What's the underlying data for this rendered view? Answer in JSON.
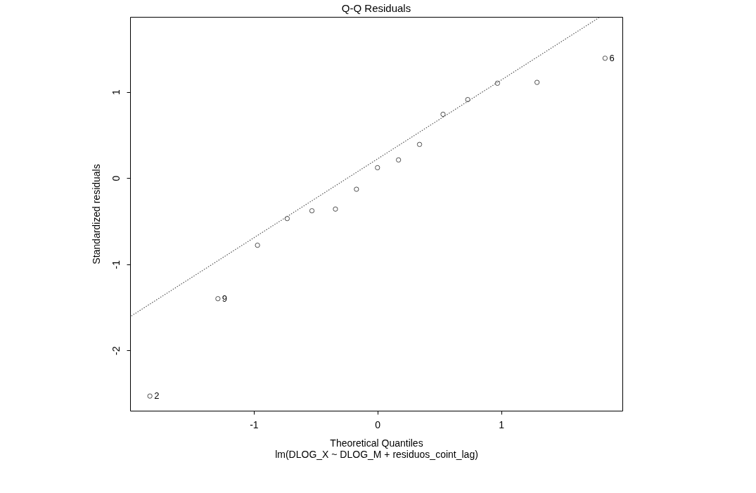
{
  "chart_data": {
    "type": "scatter",
    "title": "Q-Q Residuals",
    "subtitle": "lm(DLOG_X ~ DLOG_M + residuos_coint_lag)",
    "xlabel": "Theoretical Quantiles",
    "ylabel": "Standardized residuals",
    "series": [
      {
        "color": "#000000",
        "marker": "circle",
        "x": [
          -1.84,
          -1.29,
          -0.97,
          -0.73,
          -0.53,
          -0.34,
          -0.17,
          0.0,
          0.17,
          0.34,
          0.53,
          0.73,
          0.97,
          1.29,
          1.84
        ],
        "values": [
          -2.53,
          -1.4,
          -0.78,
          -0.47,
          -0.38,
          -0.36,
          -0.13,
          0.12,
          0.21,
          0.39,
          0.74,
          0.91,
          1.1,
          1.11,
          1.39
        ]
      },
      {
        "type": "line",
        "color": "#555555",
        "line_style": "dotted",
        "x": [
          -1.99,
          1.79
        ],
        "values": [
          -1.6,
          1.86
        ]
      }
    ],
    "annotations": [
      {
        "text": "2",
        "x": -1.84,
        "y": -2.53
      },
      {
        "text": "9",
        "x": -1.29,
        "y": -1.4
      },
      {
        "text": "6",
        "x": 1.84,
        "y": 1.39
      }
    ],
    "xlim": [
      -2.0,
      1.98
    ],
    "ylim": [
      -2.7,
      1.87
    ],
    "xticks": [
      -1,
      0,
      1
    ],
    "yticks": [
      -2,
      -1,
      0,
      1
    ],
    "grid": false
  }
}
